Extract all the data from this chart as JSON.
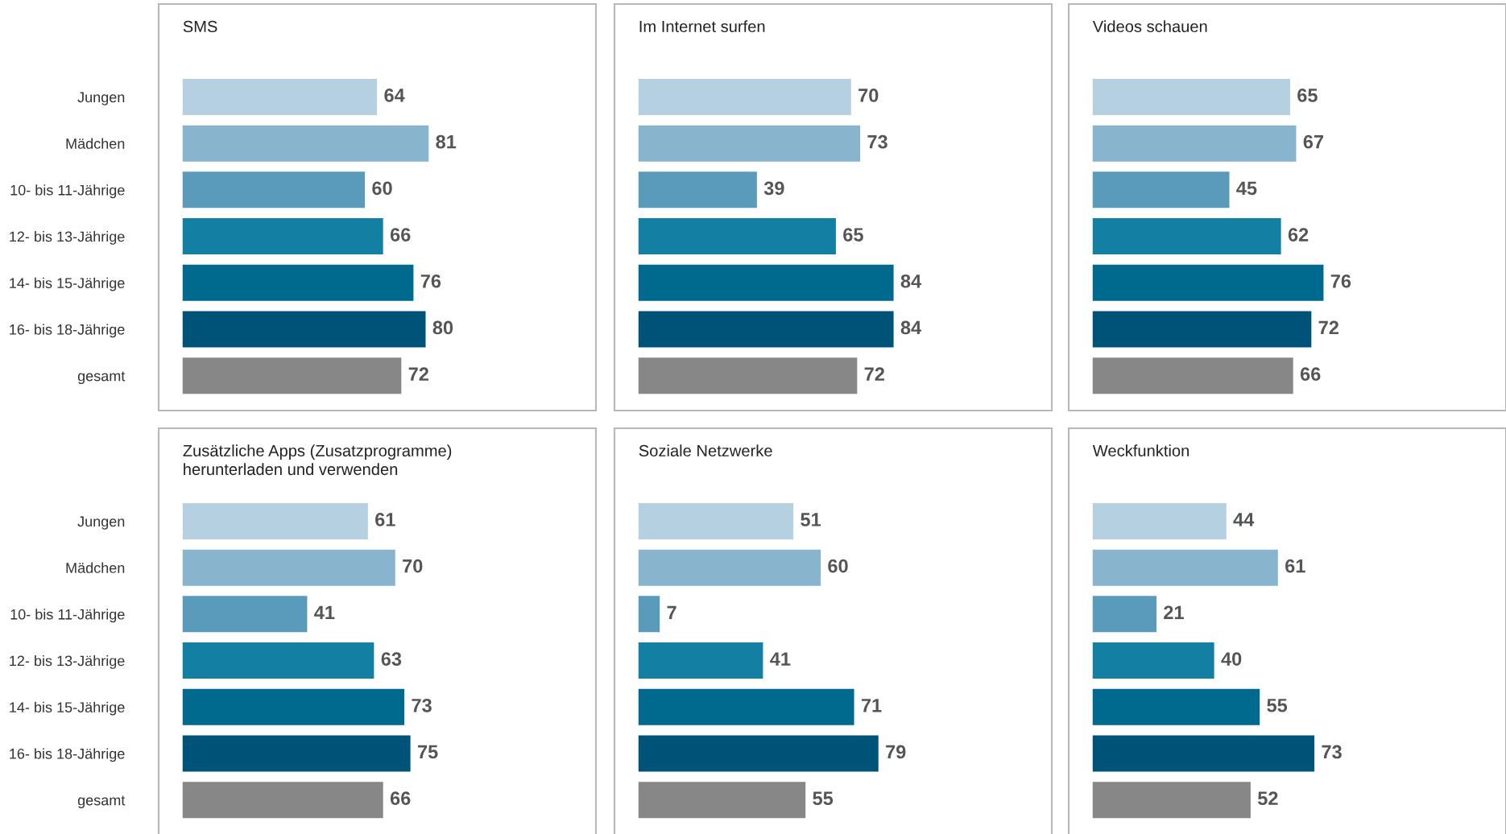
{
  "chart_data": [
    {
      "type": "bar",
      "orientation": "horizontal",
      "title": "SMS",
      "categories": [
        "Jungen",
        "Mädchen",
        "10- bis 11-Jährige",
        "12- bis 13-Jährige",
        "14- bis 15-Jährige",
        "16- bis 18-Jährige",
        "gesamt"
      ],
      "values": [
        64,
        81,
        60,
        66,
        76,
        80,
        72
      ],
      "colors": [
        "#b5d0e0",
        "#88b5cd",
        "#5a9bbb",
        "#1380a3",
        "#006a8e",
        "#005378",
        "#878787"
      ],
      "data_labels": true
    },
    {
      "type": "bar",
      "orientation": "horizontal",
      "title": "Im Internet surfen",
      "categories": [
        null,
        null,
        null,
        null,
        null,
        null,
        null
      ],
      "values": [
        70,
        73,
        39,
        65,
        84,
        84,
        72
      ],
      "colors": [
        "#b5d0e0",
        "#88b5cd",
        "#5a9bbb",
        "#1380a3",
        "#006a8e",
        "#005378",
        "#878787"
      ],
      "data_labels": true
    },
    {
      "type": "bar",
      "orientation": "horizontal",
      "title": "Videos schauen",
      "categories": [
        null,
        null,
        null,
        null,
        null,
        null,
        null
      ],
      "values": [
        65,
        67,
        45,
        62,
        76,
        72,
        66
      ],
      "colors": [
        "#b5d0e0",
        "#88b5cd",
        "#5a9bbb",
        "#1380a3",
        "#006a8e",
        "#005378",
        "#878787"
      ],
      "data_labels": true
    },
    {
      "type": "bar",
      "orientation": "horizontal",
      "title": "Zusätzliche Apps (Zusatzprogramme)\nherunterladen und verwenden",
      "categories": [
        "Jungen",
        "Mädchen",
        "10- bis 11-Jährige",
        "12- bis 13-Jährige",
        "14- bis 15-Jährige",
        "16- bis 18-Jährige",
        "gesamt"
      ],
      "values": [
        61,
        70,
        41,
        63,
        73,
        75,
        66
      ],
      "colors": [
        "#b5d0e0",
        "#88b5cd",
        "#5a9bbb",
        "#1380a3",
        "#006a8e",
        "#005378",
        "#878787"
      ],
      "data_labels": true
    },
    {
      "type": "bar",
      "orientation": "horizontal",
      "title": "Soziale Netzwerke",
      "categories": [
        null,
        null,
        null,
        null,
        null,
        null,
        null
      ],
      "values": [
        51,
        60,
        7,
        41,
        71,
        79,
        55
      ],
      "colors": [
        "#b5d0e0",
        "#88b5cd",
        "#5a9bbb",
        "#1380a3",
        "#006a8e",
        "#005378",
        "#878787"
      ],
      "data_labels": true
    },
    {
      "type": "bar",
      "orientation": "horizontal",
      "title": "Weckfunktion",
      "categories": [
        null,
        null,
        null,
        null,
        null,
        null,
        null
      ],
      "values": [
        44,
        61,
        21,
        40,
        55,
        73,
        52
      ],
      "colors": [
        "#b5d0e0",
        "#88b5cd",
        "#5a9bbb",
        "#1380a3",
        "#006a8e",
        "#005378",
        "#878787"
      ],
      "data_labels": true
    }
  ]
}
